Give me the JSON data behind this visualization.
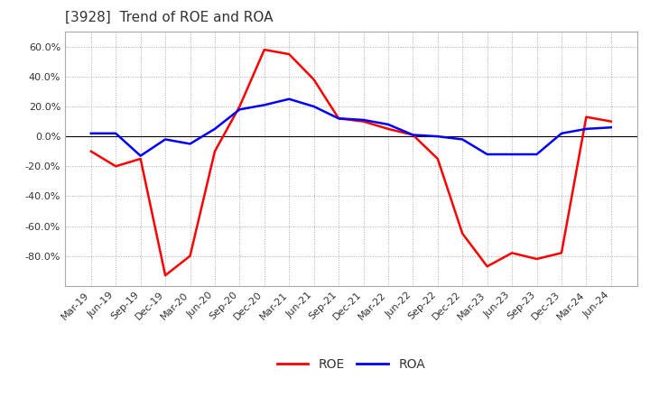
{
  "title": "[3928]  Trend of ROE and ROA",
  "x_labels": [
    "Mar-19",
    "Jun-19",
    "Sep-19",
    "Dec-19",
    "Mar-20",
    "Jun-20",
    "Sep-20",
    "Dec-20",
    "Mar-21",
    "Jun-21",
    "Sep-21",
    "Dec-21",
    "Mar-22",
    "Jun-22",
    "Sep-22",
    "Dec-22",
    "Mar-23",
    "Jun-23",
    "Sep-23",
    "Dec-23",
    "Mar-24",
    "Jun-24"
  ],
  "roe": [
    -10,
    -20,
    -15,
    -93,
    -80,
    -10,
    20,
    58,
    55,
    38,
    12,
    10,
    5,
    1,
    -15,
    -65,
    -87,
    -78,
    -82,
    -78,
    13,
    10
  ],
  "roa": [
    2,
    2,
    -13,
    -2,
    -5,
    5,
    18,
    21,
    25,
    20,
    12,
    11,
    8,
    1,
    0,
    -2,
    -12,
    -12,
    -12,
    2,
    5,
    6
  ],
  "ylim": [
    -100,
    70
  ],
  "yticks": [
    -80,
    -60,
    -40,
    -20,
    0,
    20,
    40,
    60
  ],
  "roe_color": "#FF0000",
  "roa_color": "#0000FF",
  "background_color": "#FFFFFF",
  "grid_color": "#AAAAAA",
  "zero_line_color": "#000000",
  "title_fontsize": 11,
  "axis_fontsize": 8,
  "legend_fontsize": 10
}
